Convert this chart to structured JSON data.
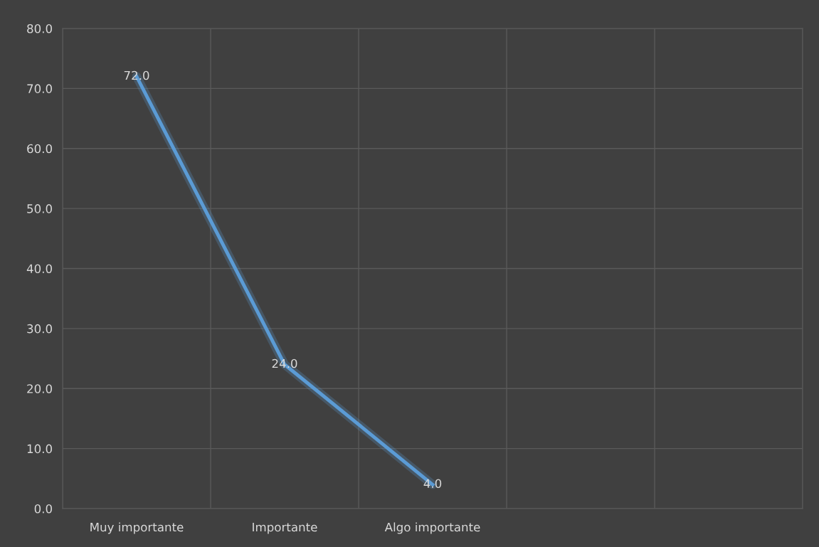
{
  "chart_data": {
    "type": "line",
    "categories": [
      "Muy importante",
      "Importante",
      "Algo importante",
      null,
      null
    ],
    "series": [
      {
        "color": "#5b9bd5",
        "values": [
          72,
          24,
          4,
          null,
          null
        ],
        "value_labels": [
          "72.0",
          "24.0",
          "4.0",
          null,
          null
        ]
      }
    ],
    "ylim": [
      0,
      80
    ],
    "yticks": [
      {
        "value": 0,
        "label": "0.0"
      },
      {
        "value": 10,
        "label": "10.0"
      },
      {
        "value": 20,
        "label": "20.0"
      },
      {
        "value": 30,
        "label": "30.0"
      },
      {
        "value": 40,
        "label": "40.0"
      },
      {
        "value": 50,
        "label": "50.0"
      },
      {
        "value": 60,
        "label": "60.0"
      },
      {
        "value": 70,
        "label": "70.0"
      },
      {
        "value": 80,
        "label": "80.0"
      }
    ],
    "grid": true,
    "marker": "none",
    "line_style": "solid"
  }
}
